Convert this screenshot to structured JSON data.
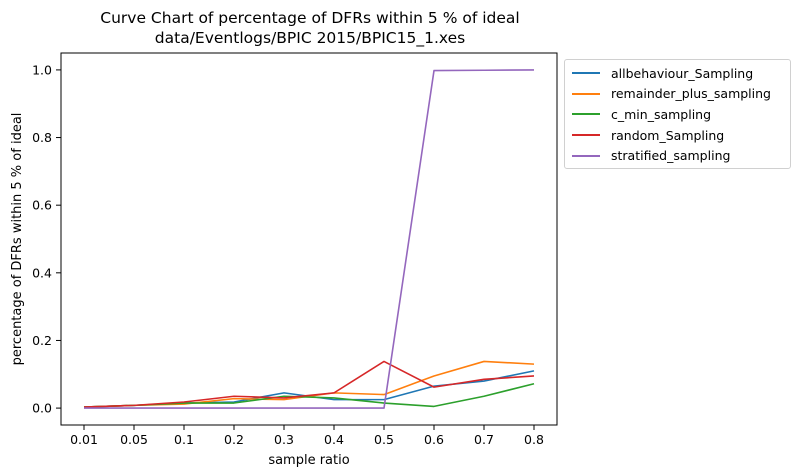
{
  "chart_data": {
    "type": "line",
    "title": "Curve Chart of percentage of DFRs within 5 % of ideal",
    "subtitle": "data/Eventlogs/BPIC 2015/BPIC15_1.xes",
    "xlabel": "sample ratio",
    "ylabel": "percentage of DFRs within 5 % of ideal",
    "categories": [
      "0.01",
      "0.05",
      "0.1",
      "0.2",
      "0.3",
      "0.4",
      "0.5",
      "0.6",
      "0.7",
      "0.8"
    ],
    "ylim": [
      -0.05,
      1.05
    ],
    "yticks": [
      "0.0",
      "0.2",
      "0.4",
      "0.6",
      "0.8",
      "1.0"
    ],
    "grid": false,
    "legend_position": "outside-top-right",
    "series": [
      {
        "name": "allbehaviour_Sampling",
        "color": "#1f77b4",
        "values": [
          0.003,
          0.008,
          0.015,
          0.018,
          0.045,
          0.025,
          0.025,
          0.065,
          0.08,
          0.11
        ]
      },
      {
        "name": "remainder_plus_sampling",
        "color": "#ff7f0e",
        "values": [
          0.003,
          0.008,
          0.012,
          0.028,
          0.025,
          0.045,
          0.04,
          0.095,
          0.138,
          0.13
        ]
      },
      {
        "name": "c_min_sampling",
        "color": "#2ca02c",
        "values": [
          0.003,
          0.008,
          0.015,
          0.015,
          0.035,
          0.03,
          0.015,
          0.005,
          0.035,
          0.072
        ]
      },
      {
        "name": "random_Sampling",
        "color": "#d62728",
        "values": [
          0.003,
          0.008,
          0.018,
          0.035,
          0.03,
          0.045,
          0.138,
          0.062,
          0.085,
          0.095
        ]
      },
      {
        "name": "stratified_sampling",
        "color": "#9467bd",
        "values": [
          0.0,
          0.0,
          0.0,
          0.0,
          0.0,
          0.0,
          0.0,
          0.998,
          0.999,
          1.0
        ]
      }
    ]
  }
}
